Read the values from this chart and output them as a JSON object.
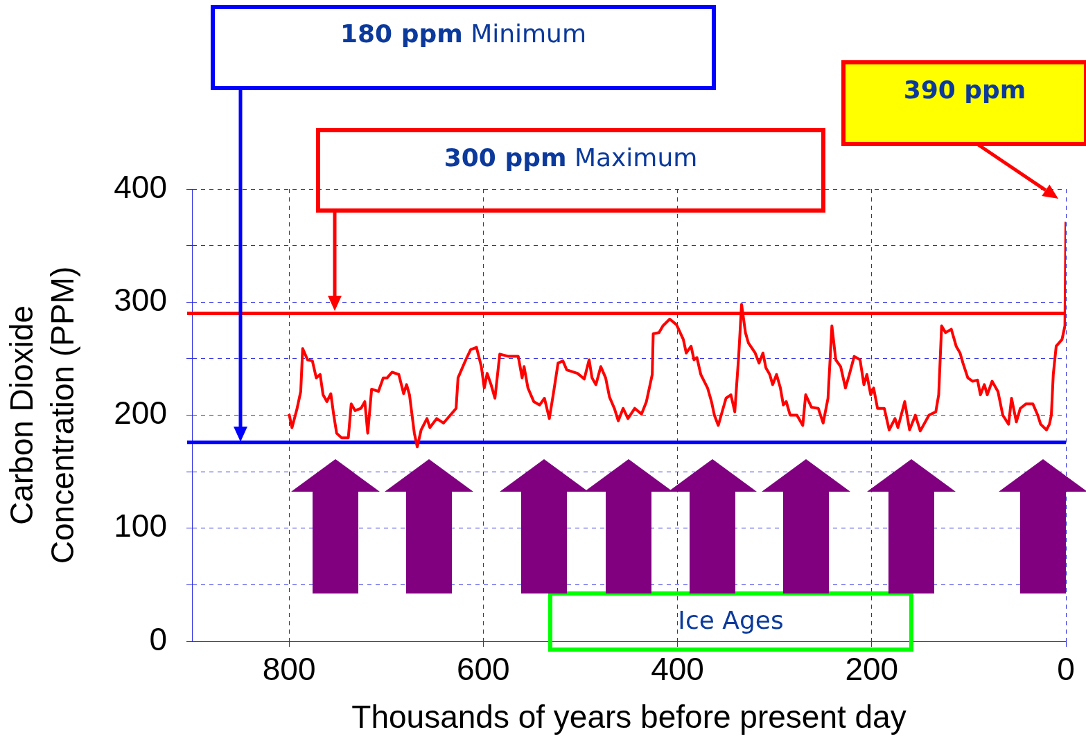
{
  "chart_data": {
    "type": "line",
    "xlabel": "Thousands of years before present day",
    "ylabel": "Carbon Dioxide Concentration (PPM)",
    "xlim": [
      900,
      0
    ],
    "xticks": [
      800,
      600,
      400,
      200,
      0
    ],
    "ylim": [
      0,
      400
    ],
    "yticks": [
      0,
      {
        "value": 50,
        "label": null
      },
      100,
      {
        "value": 150,
        "label": null
      },
      200,
      {
        "value": 250,
        "label": null
      },
      300,
      {
        "value": 350,
        "label": null
      },
      400
    ],
    "grid": true,
    "legend": false,
    "marker": "none",
    "series": [
      {
        "color": "#ff0000",
        "x": [
          800,
          797,
          792,
          788,
          786,
          781,
          776,
          772,
          768,
          765,
          761,
          757,
          754,
          751,
          746,
          739,
          736,
          732,
          726,
          722,
          719,
          715,
          708,
          703,
          699,
          694,
          687,
          682,
          679,
          676,
          671,
          668,
          664,
          658,
          655,
          648,
          641,
          634,
          628,
          626,
          618,
          613,
          607,
          602,
          599,
          596,
          592,
          588,
          583,
          574,
          564,
          560,
          558,
          554,
          548,
          542,
          537,
          532,
          528,
          523,
          518,
          514,
          503,
          496,
          491,
          488,
          484,
          479,
          474,
          470,
          465,
          461,
          456,
          451,
          444,
          437,
          432,
          426,
          425,
          419,
          415,
          408,
          401,
          394,
          391,
          386,
          383,
          380,
          376,
          369,
          365,
          362,
          358,
          355,
          350,
          345,
          341,
          337,
          334,
          330,
          327,
          320,
          316,
          312,
          309,
          305,
          302,
          298,
          294,
          291,
          288,
          284,
          277,
          271,
          268,
          262,
          255,
          250,
          245,
          241,
          237,
          232,
          227,
          223,
          218,
          212,
          208,
          205,
          201,
          198,
          194,
          187,
          182,
          176,
          173,
          166,
          161,
          155,
          150,
          141,
          134,
          131,
          128,
          124,
          118,
          113,
          109,
          106,
          101,
          96,
          91,
          88,
          84,
          81,
          76,
          70,
          65,
          59,
          56,
          51,
          47,
          41,
          34,
          29,
          26,
          20,
          17,
          15,
          13,
          10,
          4,
          1,
          0
        ],
        "values": [
          201,
          189,
          205,
          221,
          259,
          249,
          248,
          233,
          236,
          218,
          212,
          219,
          200,
          184,
          180,
          180,
          210,
          204,
          206,
          212,
          184,
          223,
          221,
          233,
          233,
          238,
          236,
          219,
          227,
          218,
          184,
          172,
          187,
          197,
          189,
          197,
          193,
          200,
          206,
          233,
          249,
          258,
          260,
          243,
          224,
          237,
          227,
          215,
          254,
          252,
          252,
          233,
          243,
          224,
          212,
          209,
          215,
          197,
          218,
          246,
          248,
          240,
          237,
          232,
          249,
          233,
          227,
          243,
          233,
          216,
          206,
          195,
          206,
          197,
          206,
          201,
          212,
          236,
          272,
          273,
          279,
          285,
          280,
          267,
          255,
          261,
          249,
          251,
          236,
          224,
          212,
          200,
          191,
          200,
          215,
          218,
          203,
          252,
          298,
          273,
          264,
          255,
          246,
          255,
          242,
          236,
          227,
          236,
          224,
          209,
          212,
          200,
          200,
          191,
          218,
          207,
          206,
          193,
          215,
          279,
          249,
          243,
          224,
          236,
          252,
          249,
          227,
          236,
          218,
          224,
          206,
          206,
          187,
          197,
          189,
          212,
          187,
          200,
          186,
          200,
          203,
          218,
          279,
          273,
          276,
          261,
          255,
          246,
          233,
          230,
          231,
          218,
          227,
          218,
          230,
          221,
          200,
          192,
          215,
          194,
          206,
          210,
          210,
          200,
          192,
          187,
          192,
          200,
          236,
          261,
          267,
          279,
          371
        ]
      }
    ],
    "ref_lines": [
      {
        "axis": "y",
        "value": 290,
        "color": "#ff0000"
      },
      {
        "axis": "y",
        "value": 176,
        "color": "#0000ff"
      }
    ],
    "annotations": [
      "180 ppm Minimum",
      "300 ppm Maximum",
      "390 ppm",
      "Ice Ages"
    ]
  }
}
